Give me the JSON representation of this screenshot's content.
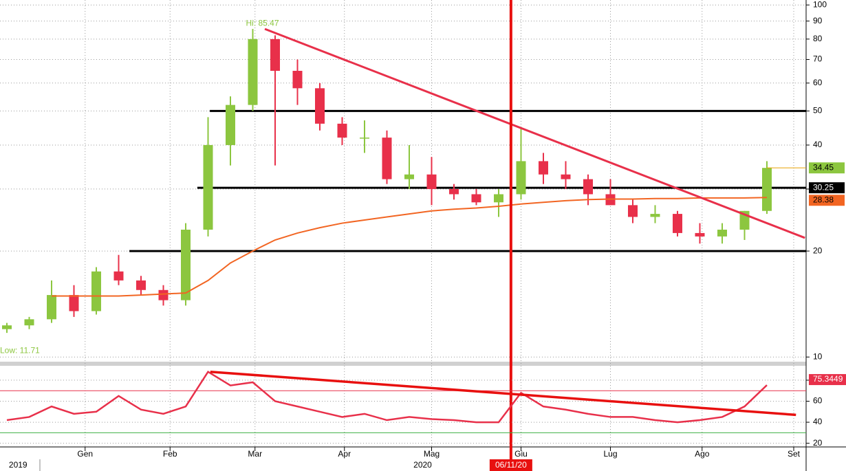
{
  "chart_data": [
    {
      "type": "candlestick",
      "open": [
        12,
        12.3,
        12.8,
        15,
        13.5,
        17.5,
        16.5,
        15.5,
        14.5,
        23,
        40,
        52,
        80,
        65,
        58,
        46,
        42,
        42,
        32,
        33,
        30,
        29,
        27.5,
        29,
        36,
        33,
        32,
        29,
        27,
        25,
        25.5,
        22.5,
        22,
        23,
        26
      ],
      "high": [
        12.5,
        13,
        16.5,
        16,
        18,
        19.5,
        17,
        16,
        24,
        48,
        55,
        85.47,
        82,
        70,
        60,
        48,
        47,
        44,
        40,
        37,
        31,
        30,
        30,
        45,
        38,
        36,
        33,
        32,
        28,
        27,
        26,
        24,
        24,
        26,
        36
      ],
      "low": [
        11.71,
        12,
        12.5,
        13,
        13.2,
        16,
        15,
        14,
        14,
        22,
        35,
        50,
        35,
        52,
        44,
        40,
        38,
        31,
        30,
        27,
        28,
        27,
        25,
        28,
        31,
        30,
        27,
        27,
        24,
        24,
        22,
        21,
        21,
        21.5,
        25.5
      ],
      "close": [
        12.3,
        12.8,
        15,
        13.5,
        17.5,
        16.5,
        15.5,
        14.5,
        23,
        40,
        52,
        80,
        65,
        58,
        46,
        42,
        42,
        32,
        33,
        30,
        29,
        27.5,
        29,
        36,
        33,
        32,
        29,
        27,
        25,
        25.5,
        22.5,
        22,
        23,
        26,
        34.45
      ],
      "up_color": "#8cc63f",
      "down_color": "#e8304a",
      "overlay": {
        "color": "#f26522",
        "values": [
          null,
          null,
          14.9,
          14.9,
          14.9,
          14.9,
          15,
          15.1,
          15.2,
          16.5,
          18.5,
          20,
          21.5,
          22.5,
          23.3,
          24,
          24.5,
          25,
          25.5,
          26,
          26.3,
          26.5,
          26.8,
          27.2,
          27.5,
          27.8,
          28,
          28.1,
          28.1,
          28.2,
          28.2,
          28.3,
          28.3,
          28.3,
          28.38
        ]
      },
      "log_scale": true,
      "grid": true,
      "ylim": [
        9.7,
        101
      ],
      "yticks": [
        10,
        20,
        30,
        40,
        50,
        60,
        70,
        80,
        90,
        100
      ],
      "xticks": [
        {
          "value": 3.5,
          "label": "Gen"
        },
        {
          "value": 7.3,
          "label": "Feb"
        },
        {
          "value": 11.1,
          "label": "Mar"
        },
        {
          "value": 15.1,
          "label": "Apr"
        },
        {
          "value": 19,
          "label": "Mag"
        },
        {
          "value": 23,
          "label": "Giu"
        },
        {
          "value": 27,
          "label": "Lug"
        },
        {
          "value": 31.1,
          "label": "Ago"
        },
        {
          "value": 35.2,
          "label": "Set"
        }
      ],
      "year_labels": [
        {
          "value": 0.5,
          "label": "2019"
        },
        {
          "value": 18.6,
          "label": "2020"
        }
      ],
      "levels": [
        {
          "value": 50,
          "start": 9.08
        },
        {
          "value": 30.25,
          "start": 8.52
        },
        {
          "value": 20,
          "start": 5.48
        }
      ],
      "trendline": {
        "x": [
          11.54,
          35.7
        ],
        "y": [
          85.47,
          21.8
        ],
        "color": "#e8304a"
      },
      "vline": {
        "x": 22.55,
        "label": "06/11/20",
        "color": "#e8100f"
      },
      "hi_label": "Hi: 85.47",
      "low_label": "Low: 11.71",
      "label_color": "#8cc63f"
    },
    {
      "type": "line",
      "values": [
        42,
        45,
        55,
        48,
        50,
        65,
        52,
        48,
        55,
        88,
        75,
        78,
        60,
        55,
        50,
        45,
        48,
        42,
        45,
        43,
        42,
        40,
        40,
        68,
        55,
        52,
        48,
        45,
        45,
        42,
        40,
        42,
        45,
        55,
        75.3449
      ],
      "color": "#e8304a",
      "ylim": [
        16.5,
        95
      ],
      "yticks": [
        20,
        40,
        60,
        80
      ],
      "grid": true,
      "hlines": [
        {
          "value": 70,
          "color": "#e8304a"
        },
        {
          "value": 30,
          "color": "#3cb043"
        }
      ],
      "trendline": {
        "x": [
          9.1,
          35.3
        ],
        "y": [
          88,
          47
        ],
        "color": "#e8100f"
      }
    }
  ]
}
